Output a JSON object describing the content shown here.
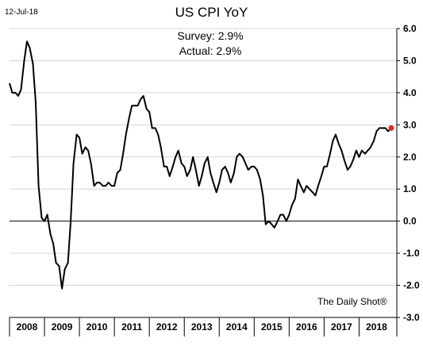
{
  "date_label": "12-Jul-18",
  "source": "The Daily Shot®",
  "chart_data": {
    "type": "line",
    "title": "US CPI YoY",
    "annotations": [
      "Survey: 2.9%",
      "Actual:  2.9%"
    ],
    "xlabel": "",
    "ylabel": "",
    "x_categories": [
      "2008",
      "2009",
      "2010",
      "2011",
      "2012",
      "2013",
      "2014",
      "2015",
      "2016",
      "2017",
      "2018"
    ],
    "y_ticks": [
      "6.0",
      "5.0",
      "4.0",
      "3.0",
      "2.0",
      "1.0",
      "0.0",
      "-1.0",
      "-2.0",
      "-3.0"
    ],
    "ylim": [
      -3,
      6
    ],
    "xlim": [
      2007.5,
      2018.58
    ],
    "grid": "horizontal",
    "zero_line": true,
    "y_axis_position": "right",
    "line_color": "#000000",
    "highlight_color": "#e8251f",
    "series": [
      {
        "x": [
          2007.5,
          2007.58,
          2007.67,
          2007.75,
          2007.83,
          2007.92,
          2008.0,
          2008.08,
          2008.17,
          2008.25,
          2008.33,
          2008.42,
          2008.5,
          2008.58,
          2008.67,
          2008.75,
          2008.83,
          2008.92,
          2009.0,
          2009.08,
          2009.17,
          2009.25,
          2009.33,
          2009.42,
          2009.5,
          2009.58,
          2009.67,
          2009.75,
          2009.83,
          2009.92,
          2010.0,
          2010.08,
          2010.17,
          2010.25,
          2010.33,
          2010.42,
          2010.5,
          2010.58,
          2010.67,
          2010.75,
          2010.83,
          2010.92,
          2011.0,
          2011.08,
          2011.17,
          2011.25,
          2011.33,
          2011.42,
          2011.5,
          2011.58,
          2011.67,
          2011.75,
          2011.83,
          2011.92,
          2012.0,
          2012.08,
          2012.17,
          2012.25,
          2012.33,
          2012.42,
          2012.5,
          2012.58,
          2012.67,
          2012.75,
          2012.83,
          2012.92,
          2013.0,
          2013.08,
          2013.17,
          2013.25,
          2013.33,
          2013.42,
          2013.5,
          2013.58,
          2013.67,
          2013.75,
          2013.83,
          2013.92,
          2014.0,
          2014.08,
          2014.17,
          2014.25,
          2014.33,
          2014.42,
          2014.5,
          2014.58,
          2014.67,
          2014.75,
          2014.83,
          2014.92,
          2015.0,
          2015.08,
          2015.17,
          2015.25,
          2015.33,
          2015.42,
          2015.5,
          2015.58,
          2015.67,
          2015.75,
          2015.83,
          2015.92,
          2016.0,
          2016.08,
          2016.17,
          2016.25,
          2016.33,
          2016.42,
          2016.5,
          2016.58,
          2016.67,
          2016.75,
          2016.83,
          2016.92,
          2017.0,
          2017.08,
          2017.17,
          2017.25,
          2017.33,
          2017.42,
          2017.5,
          2017.58,
          2017.67,
          2017.75,
          2017.83,
          2017.92,
          2018.0,
          2018.08,
          2018.17,
          2018.25,
          2018.33,
          2018.42
        ],
        "y": [
          4.3,
          4.0,
          4.0,
          3.9,
          4.1,
          5.0,
          5.6,
          5.4,
          4.9,
          3.7,
          1.1,
          0.1,
          0.0,
          0.2,
          -0.4,
          -0.7,
          -1.3,
          -1.4,
          -2.1,
          -1.5,
          -1.3,
          0.0,
          1.8,
          2.7,
          2.6,
          2.1,
          2.3,
          2.2,
          1.8,
          1.1,
          1.2,
          1.2,
          1.1,
          1.1,
          1.2,
          1.1,
          1.1,
          1.5,
          1.6,
          2.1,
          2.7,
          3.2,
          3.6,
          3.6,
          3.6,
          3.8,
          3.9,
          3.5,
          3.4,
          2.9,
          2.9,
          2.7,
          2.3,
          1.7,
          1.7,
          1.4,
          1.7,
          2.0,
          2.2,
          1.8,
          1.7,
          1.4,
          1.6,
          2.0,
          1.6,
          1.1,
          1.4,
          1.8,
          2.0,
          1.5,
          1.2,
          0.9,
          1.2,
          1.6,
          1.7,
          1.5,
          1.2,
          1.5,
          2.0,
          2.1,
          2.0,
          1.8,
          1.6,
          1.7,
          1.7,
          1.6,
          1.3,
          0.8,
          -0.1,
          0.0,
          -0.1,
          -0.2,
          0.0,
          0.2,
          0.2,
          0.0,
          0.2,
          0.5,
          0.7,
          1.3,
          1.1,
          0.9,
          1.1,
          1.0,
          0.9,
          0.8,
          1.1,
          1.4,
          1.7,
          1.7,
          2.1,
          2.5,
          2.7,
          2.4,
          2.2,
          1.9,
          1.6,
          1.7,
          1.9,
          2.2,
          2.0,
          2.2,
          2.1,
          2.2,
          2.3,
          2.5,
          2.8,
          2.9,
          2.9,
          2.9,
          2.8,
          2.9
        ]
      }
    ],
    "highlight_point": {
      "x": 2018.42,
      "y": 2.9
    }
  }
}
